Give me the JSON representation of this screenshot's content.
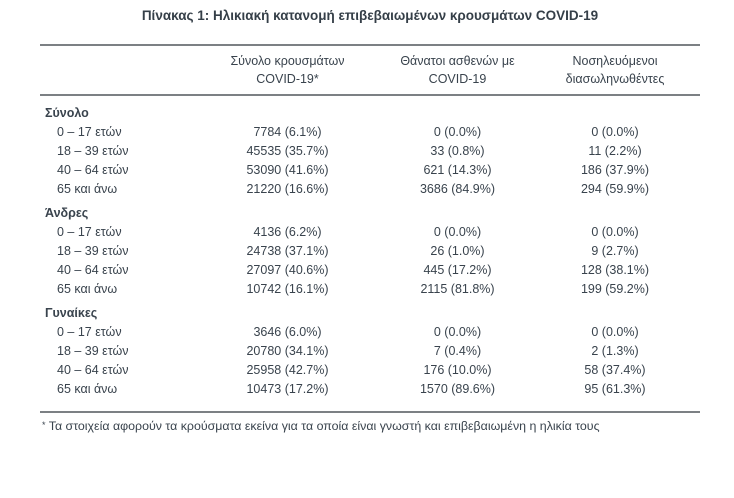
{
  "title": "Πίνακας 1: Ηλικιακή κατανομή επιβεβαιωμένων κρουσμάτων COVID-19",
  "table": {
    "columns": [
      {
        "line1": "Σύνολο κρουσμάτων",
        "line2": "COVID-19*"
      },
      {
        "line1": "Θάνατοι ασθενών με",
        "line2": "COVID-19"
      },
      {
        "line1": "Νοσηλευόμενοι",
        "line2": "διασωληνωθέντες"
      }
    ],
    "sections": [
      {
        "label": "Σύνολο",
        "rows": [
          {
            "age": "0 – 17 ετών",
            "cases": "7784 (6.1%)",
            "deaths": "0 (0.0%)",
            "intubated": "0 (0.0%)"
          },
          {
            "age": "18 – 39 ετών",
            "cases": "45535 (35.7%)",
            "deaths": "33 (0.8%)",
            "intubated": "11 (2.2%)"
          },
          {
            "age": "40 – 64 ετών",
            "cases": "53090 (41.6%)",
            "deaths": "621 (14.3%)",
            "intubated": "186 (37.9%)"
          },
          {
            "age": "65 και άνω",
            "cases": "21220 (16.6%)",
            "deaths": "3686 (84.9%)",
            "intubated": "294 (59.9%)"
          }
        ]
      },
      {
        "label": "Άνδρες",
        "rows": [
          {
            "age": "0 – 17 ετών",
            "cases": "4136 (6.2%)",
            "deaths": "0 (0.0%)",
            "intubated": "0 (0.0%)"
          },
          {
            "age": "18 – 39 ετών",
            "cases": "24738 (37.1%)",
            "deaths": "26 (1.0%)",
            "intubated": "9 (2.7%)"
          },
          {
            "age": "40 – 64 ετών",
            "cases": "27097 (40.6%)",
            "deaths": "445 (17.2%)",
            "intubated": "128 (38.1%)"
          },
          {
            "age": "65 και άνω",
            "cases": "10742 (16.1%)",
            "deaths": "2115 (81.8%)",
            "intubated": "199 (59.2%)"
          }
        ]
      },
      {
        "label": "Γυναίκες",
        "rows": [
          {
            "age": "0 – 17 ετών",
            "cases": "3646 (6.0%)",
            "deaths": "0 (0.0%)",
            "intubated": "0 (0.0%)"
          },
          {
            "age": "18 – 39 ετών",
            "cases": "20780 (34.1%)",
            "deaths": "7 (0.4%)",
            "intubated": "2 (1.3%)"
          },
          {
            "age": "40 – 64 ετών",
            "cases": "25958 (42.7%)",
            "deaths": "176 (10.0%)",
            "intubated": "58 (37.4%)"
          },
          {
            "age": "65 και άνω",
            "cases": "10473 (17.2%)",
            "deaths": "1570 (89.6%)",
            "intubated": "95 (61.3%)"
          }
        ]
      }
    ]
  },
  "footnote": {
    "marker": "*",
    "text": "Τα στοιχεία αφορούν τα κρούσματα εκείνα για τα οποία είναι γνωστή και επιβεβαιωμένη η ηλικία τους"
  },
  "colors": {
    "text": "#39434d",
    "rule": "#7c8084",
    "background": "#ffffff"
  }
}
